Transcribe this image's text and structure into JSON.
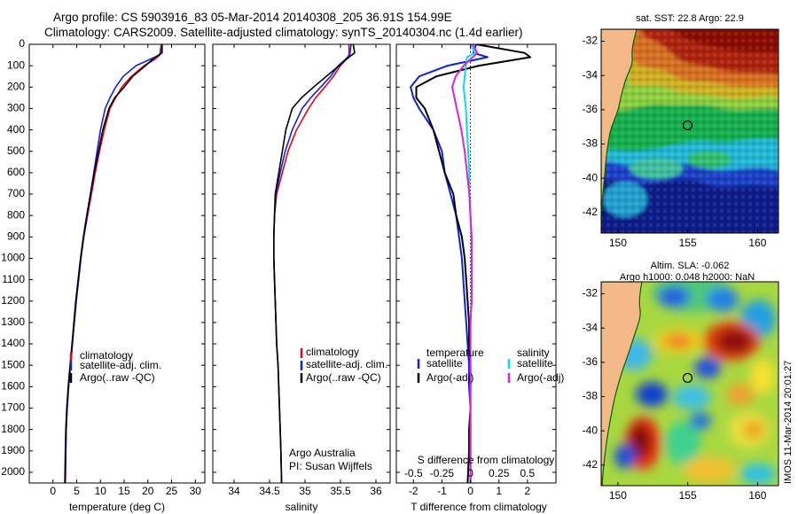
{
  "title": {
    "line1": "Argo profile: CS 5903916_83 05-Mar-2014 20140308_205 36.91S 154.99E",
    "line2": "Climatology: CARS2009. Satellite-adjusted climatology: synTS_20140304.nc (1.4d earlier)"
  },
  "watermark": "IMOS 11-Mar-2014 20:01:27",
  "colors": {
    "climatology": "#e8001c",
    "satellite": "#1020e0",
    "argo": "#000000",
    "sal_satellite": "#00e0ee",
    "sal_argo": "#e020e0",
    "land": "#f5b888"
  },
  "chart_data": [
    {
      "type": "line",
      "title": "",
      "xlabel": "temperature (deg C)",
      "ylabel": "",
      "xlim": [
        -5,
        32
      ],
      "ylim": [
        2050,
        0
      ],
      "y_reversed": true,
      "xticks": [
        "0",
        "5",
        "10",
        "15",
        "20",
        "25",
        "30"
      ],
      "yticks": [
        "0",
        "100",
        "200",
        "300",
        "400",
        "500",
        "600",
        "700",
        "800",
        "900",
        "1000",
        "1100",
        "1200",
        "1300",
        "1400",
        "1500",
        "1600",
        "1700",
        "1800",
        "1900",
        "2000"
      ],
      "legend": [
        "climatology",
        "satellite-adj. clim.",
        "Argo(..raw -QC)"
      ],
      "legend_position": "lower-center",
      "series": [
        {
          "name": "climatology",
          "color": "#e8001c",
          "x": [
            22.8,
            22.5,
            21.5,
            19.2,
            16.5,
            14.5,
            13.2,
            12.0,
            10.8,
            9.8,
            8.9,
            8.1,
            7.3,
            6.5,
            5.9,
            5.4,
            4.9,
            4.5,
            4.1,
            3.7,
            3.3,
            3.0,
            2.8,
            2.7,
            2.6
          ],
          "y": [
            0,
            50,
            70,
            100,
            150,
            200,
            250,
            300,
            400,
            500,
            600,
            700,
            800,
            900,
            1000,
            1100,
            1200,
            1300,
            1400,
            1500,
            1600,
            1700,
            1800,
            1900,
            2050
          ]
        },
        {
          "name": "satellite-adj. clim.",
          "color": "#1020e0",
          "x": [
            23.0,
            22.5,
            20.5,
            17.5,
            14.8,
            13.2,
            12.0,
            11.0,
            10.0,
            9.3,
            8.6,
            7.9,
            7.2,
            6.5,
            5.9,
            5.4,
            4.9,
            4.5,
            4.1,
            3.7,
            3.3,
            3.0,
            2.8,
            2.7,
            2.6
          ],
          "y": [
            0,
            50,
            70,
            100,
            150,
            200,
            250,
            300,
            400,
            500,
            600,
            700,
            800,
            900,
            1000,
            1100,
            1200,
            1300,
            1400,
            1500,
            1600,
            1700,
            1800,
            1900,
            2050
          ]
        },
        {
          "name": "Argo(..raw -QC)",
          "color": "#000000",
          "x": [
            23.0,
            23.0,
            21.5,
            19.5,
            16.8,
            15.0,
            13.0,
            11.8,
            10.5,
            9.6,
            8.7,
            7.9,
            7.1,
            6.4,
            5.8,
            5.3,
            4.8,
            4.4,
            4.0,
            3.6,
            3.2,
            2.9,
            2.7,
            2.6,
            2.5
          ],
          "y": [
            0,
            40,
            60,
            100,
            150,
            200,
            250,
            300,
            400,
            500,
            600,
            700,
            800,
            900,
            1000,
            1100,
            1200,
            1300,
            1400,
            1500,
            1600,
            1700,
            1800,
            1900,
            2050
          ]
        }
      ]
    },
    {
      "type": "line",
      "title": "",
      "xlabel": "salinity",
      "ylabel": "",
      "xlim": [
        33.7,
        36.2
      ],
      "ylim": [
        2050,
        0
      ],
      "y_reversed": true,
      "xticks": [
        "34",
        "34.5",
        "35",
        "35.5",
        "36"
      ],
      "legend": [
        "climatology",
        "satellite-adj. clim.",
        "Argo(..raw -QC)"
      ],
      "legend_position": "lower-center",
      "annotation": [
        "Argo Australia",
        "PI: Susan Wijffels"
      ],
      "series": [
        {
          "name": "climatology",
          "color": "#e8001c",
          "x": [
            35.62,
            35.62,
            35.58,
            35.5,
            35.4,
            35.28,
            35.15,
            35.05,
            34.88,
            34.76,
            34.68,
            34.6,
            34.57,
            34.56,
            34.56,
            34.57,
            34.58,
            34.59,
            34.6,
            34.62,
            34.63,
            34.64,
            34.65,
            34.66,
            34.67
          ],
          "y": [
            0,
            50,
            70,
            100,
            150,
            200,
            250,
            300,
            400,
            500,
            600,
            700,
            800,
            900,
            1000,
            1100,
            1200,
            1300,
            1400,
            1500,
            1600,
            1700,
            1800,
            1900,
            2050
          ]
        },
        {
          "name": "satellite-adj. clim.",
          "color": "#1020e0",
          "x": [
            35.65,
            35.63,
            35.57,
            35.47,
            35.36,
            35.22,
            35.08,
            34.96,
            34.82,
            34.72,
            34.65,
            34.59,
            34.57,
            34.56,
            34.56,
            34.57,
            34.58,
            34.59,
            34.6,
            34.62,
            34.63,
            34.64,
            34.65,
            34.66,
            34.67
          ],
          "y": [
            0,
            50,
            70,
            100,
            150,
            200,
            250,
            300,
            400,
            500,
            600,
            700,
            800,
            900,
            1000,
            1100,
            1200,
            1300,
            1400,
            1500,
            1600,
            1700,
            1800,
            1900,
            2050
          ]
        },
        {
          "name": "Argo(..raw -QC)",
          "color": "#000000",
          "x": [
            35.68,
            35.7,
            35.62,
            35.48,
            35.3,
            35.12,
            34.95,
            34.82,
            34.73,
            34.68,
            34.63,
            34.58,
            34.57,
            34.56,
            34.56,
            34.57,
            34.58,
            34.59,
            34.6,
            34.62,
            34.63,
            34.64,
            34.65,
            34.66,
            34.67
          ],
          "y": [
            0,
            40,
            60,
            100,
            150,
            200,
            250,
            300,
            400,
            500,
            600,
            700,
            800,
            900,
            1000,
            1100,
            1200,
            1300,
            1400,
            1500,
            1600,
            1700,
            1800,
            1900,
            2050
          ]
        }
      ]
    },
    {
      "type": "line",
      "title": "",
      "xlabel": "T difference from climatology",
      "xlabel2": "S difference from climatology",
      "ylabel": "",
      "xlim_T": [
        -2.6,
        3.0
      ],
      "xlim_S": [
        -0.65,
        0.75
      ],
      "ylim": [
        2050,
        0
      ],
      "y_reversed": true,
      "xticks_T": [
        "-2",
        "-1",
        "0",
        "1",
        "2"
      ],
      "xticks_S": [
        "-0.5",
        "-0.25",
        "0",
        "0.25",
        "0.5"
      ],
      "zero_line": "dotted",
      "legend_groups": [
        {
          "header": "temperature",
          "items": [
            "satellite",
            "Argo(-adj)"
          ]
        },
        {
          "header": "salinity",
          "items": [
            "satellite",
            "Argo(-adj)"
          ]
        }
      ],
      "series": [
        {
          "name": "temperature satellite",
          "color": "#1020e0",
          "x": [
            0.2,
            0.1,
            0.6,
            -0.8,
            -1.8,
            -2.1,
            -2.0,
            -1.8,
            -1.3,
            -1.0,
            -0.9,
            -0.7,
            -0.5,
            -0.4,
            -0.3,
            -0.25,
            -0.2,
            -0.15,
            -0.1,
            -0.05,
            -0.05,
            0,
            0,
            0,
            0
          ],
          "y": [
            0,
            40,
            60,
            100,
            150,
            200,
            250,
            300,
            400,
            500,
            600,
            700,
            800,
            900,
            1000,
            1100,
            1200,
            1300,
            1400,
            1500,
            1600,
            1700,
            1800,
            1900,
            2050
          ]
        },
        {
          "name": "temperature Argo(-adj)",
          "color": "#000000",
          "x": [
            0.2,
            1.9,
            2.1,
            0.3,
            -1.2,
            -1.9,
            -1.9,
            -1.6,
            -1.3,
            -1.1,
            -0.9,
            -0.6,
            -0.5,
            -0.3,
            -0.2,
            -0.15,
            -0.1,
            -0.05,
            -0.05,
            0,
            0,
            0,
            -0.05,
            -0.05,
            -0.1
          ],
          "y": [
            0,
            40,
            60,
            100,
            150,
            200,
            250,
            300,
            400,
            500,
            600,
            700,
            800,
            900,
            1000,
            1100,
            1200,
            1300,
            1400,
            1500,
            1600,
            1700,
            1800,
            1900,
            2050
          ]
        },
        {
          "name": "salinity satellite",
          "color": "#00e0ee",
          "x": [
            0,
            0.04,
            -0.03,
            -0.04,
            -0.05,
            -0.06,
            -0.05,
            -0.04,
            -0.03,
            -0.02,
            -0.01,
            -0.01,
            0,
            0.01,
            0.01,
            0.01,
            0.01,
            0,
            0,
            0,
            0,
            0,
            0,
            0,
            0
          ],
          "y": [
            0,
            40,
            60,
            100,
            150,
            200,
            250,
            300,
            400,
            500,
            600,
            700,
            800,
            900,
            1000,
            1100,
            1200,
            1300,
            1400,
            1500,
            1600,
            1700,
            1800,
            1900,
            2050
          ]
        },
        {
          "name": "salinity Argo(-adj)",
          "color": "#e020e0",
          "x": [
            0.02,
            0.06,
            0.02,
            -0.06,
            -0.13,
            -0.16,
            -0.14,
            -0.12,
            -0.08,
            -0.05,
            -0.03,
            -0.01,
            0,
            0.01,
            0.01,
            0.01,
            0.01,
            0,
            0,
            0,
            0,
            0,
            0,
            0,
            0
          ],
          "y": [
            0,
            40,
            60,
            100,
            150,
            200,
            250,
            300,
            400,
            500,
            600,
            700,
            800,
            900,
            1000,
            1100,
            1200,
            1300,
            1400,
            1500,
            1600,
            1700,
            1800,
            1900,
            2050
          ]
        }
      ]
    },
    {
      "type": "heatmap",
      "title": "sat. SST: 22.8 Argo: 22.9",
      "xlim": [
        148.8,
        161.5
      ],
      "ylim": [
        -43.2,
        -31.3
      ],
      "xticks": [
        "150",
        "155",
        "160"
      ],
      "yticks": [
        "-32",
        "-34",
        "-36",
        "-38",
        "-40",
        "-42"
      ],
      "marker": {
        "x": 154.99,
        "y": -36.91,
        "style": "circle"
      },
      "colormap": "jet"
    },
    {
      "type": "heatmap",
      "title": "Altim. SLA: -0.062",
      "subtitle": "Argo h1000: 0.048 h2000: NaN",
      "xlim": [
        148.8,
        161.5
      ],
      "ylim": [
        -43.2,
        -31.3
      ],
      "xticks": [
        "150",
        "155",
        "160"
      ],
      "yticks": [
        "-32",
        "-34",
        "-36",
        "-38",
        "-40",
        "-42"
      ],
      "marker": {
        "x": 154.99,
        "y": -36.91,
        "style": "circle"
      },
      "colormap": "jet"
    }
  ]
}
